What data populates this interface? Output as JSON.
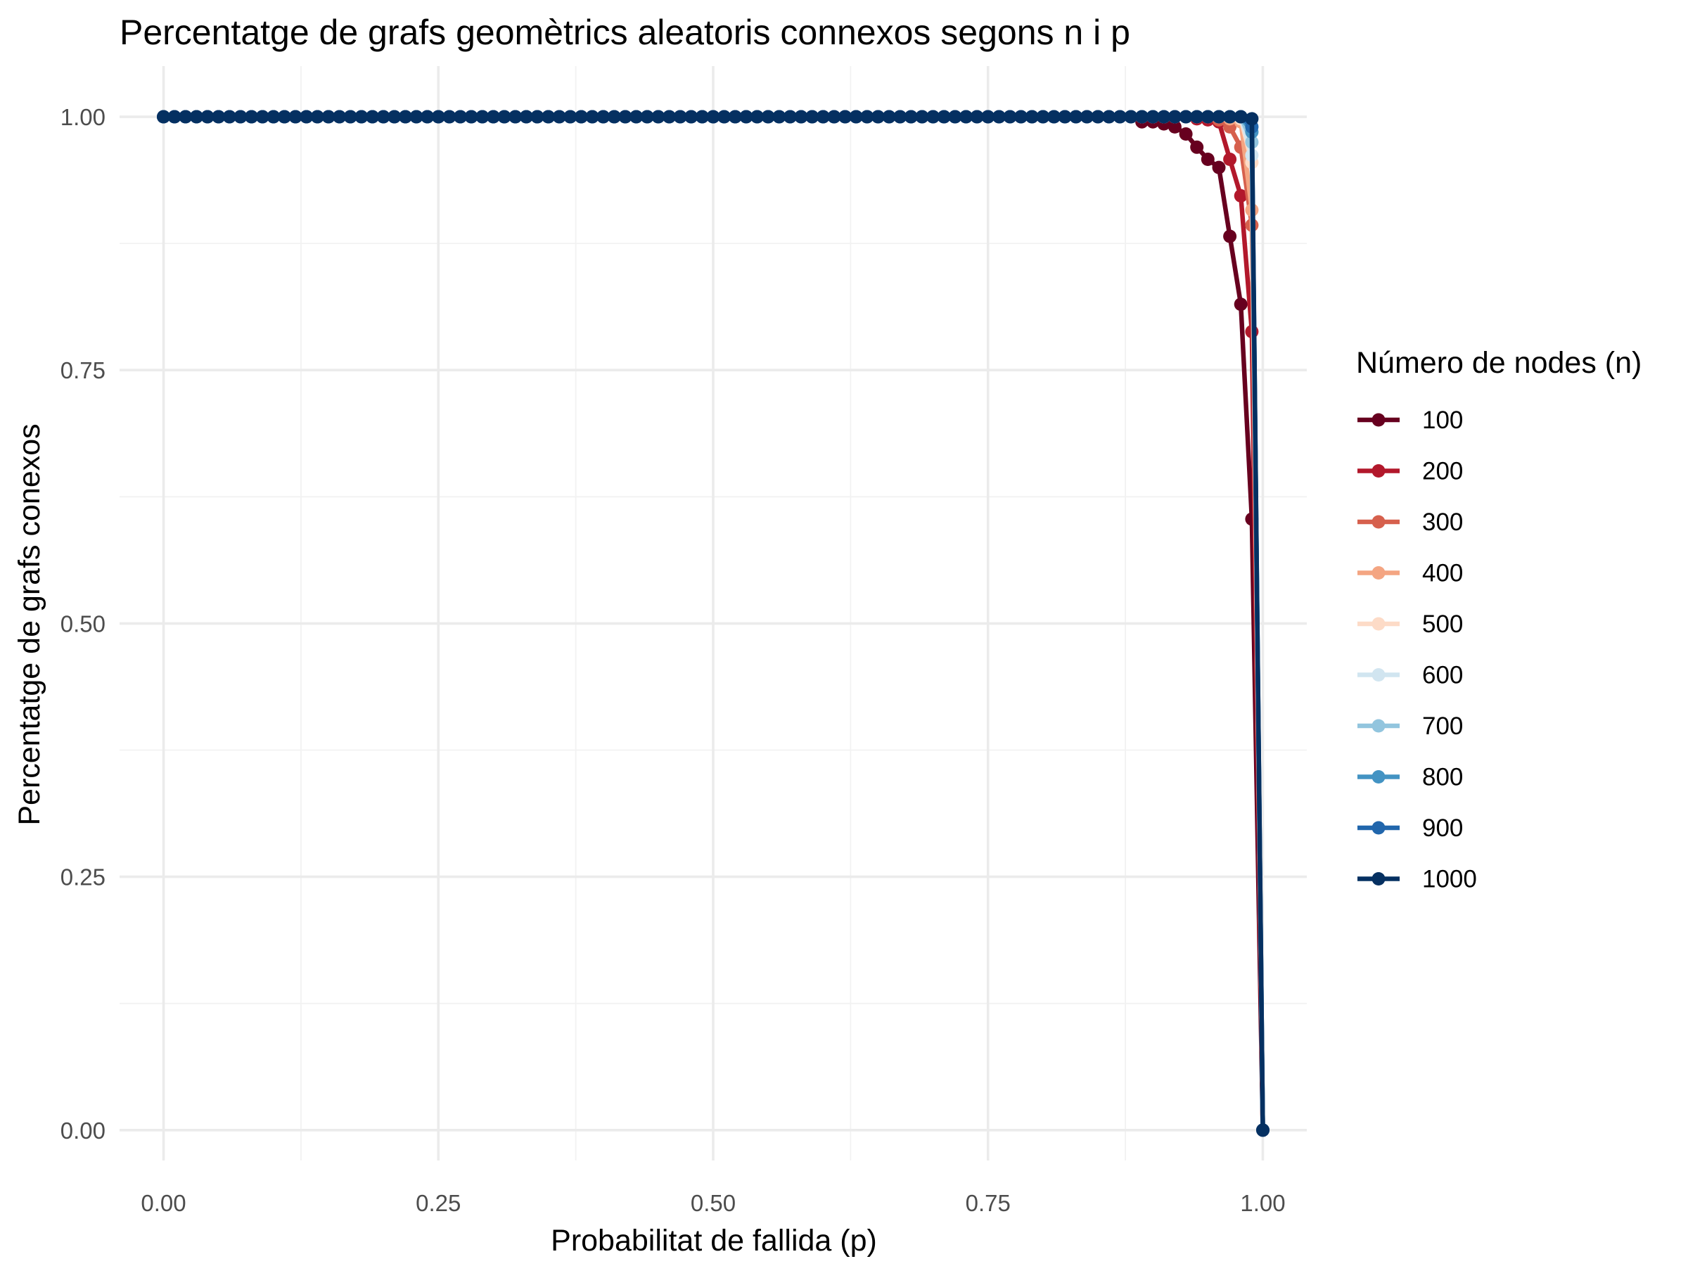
{
  "chart_data": {
    "type": "line",
    "title": "Percentatge de grafs geomètrics aleatoris connexos segons n i p",
    "xlabel": "Probabilitat de fallida (p)",
    "ylabel": "Percentatge de grafs conexos",
    "xlim": [
      -0.04,
      1.04
    ],
    "ylim": [
      -0.03,
      1.05
    ],
    "x_ticks": [
      0,
      0.25,
      0.5,
      0.75,
      1
    ],
    "x_tick_labels": [
      "0.00",
      "0.25",
      "0.50",
      "0.75",
      "1.00"
    ],
    "y_ticks": [
      0,
      0.25,
      0.5,
      0.75,
      1
    ],
    "y_tick_labels": [
      "0.00",
      "0.25",
      "0.50",
      "0.75",
      "1.00"
    ],
    "grid": true,
    "x": {
      "start": 0,
      "end": 1,
      "step": 0.01
    },
    "legend": {
      "title": "Número de nodes (n)",
      "placement": "right"
    },
    "series": [
      {
        "name": "100",
        "color": "#67001f",
        "tail": [
          [
            0.88,
            1.0
          ],
          [
            0.89,
            0.995
          ],
          [
            0.9,
            0.995
          ],
          [
            0.91,
            0.993
          ],
          [
            0.92,
            0.99
          ],
          [
            0.93,
            0.983
          ],
          [
            0.94,
            0.97
          ],
          [
            0.95,
            0.958
          ],
          [
            0.96,
            0.95
          ],
          [
            0.97,
            0.882
          ],
          [
            0.98,
            0.815
          ],
          [
            0.99,
            0.603
          ],
          [
            1.0,
            0.0
          ]
        ]
      },
      {
        "name": "200",
        "color": "#b2182b",
        "tail": [
          [
            0.93,
            1.0
          ],
          [
            0.94,
            0.998
          ],
          [
            0.95,
            0.997
          ],
          [
            0.96,
            0.995
          ],
          [
            0.97,
            0.958
          ],
          [
            0.98,
            0.922
          ],
          [
            0.99,
            0.788
          ],
          [
            1.0,
            0.0
          ]
        ]
      },
      {
        "name": "300",
        "color": "#d6604d",
        "tail": [
          [
            0.95,
            1.0
          ],
          [
            0.96,
            0.997
          ],
          [
            0.97,
            0.99
          ],
          [
            0.98,
            0.97
          ],
          [
            0.99,
            0.893
          ],
          [
            1.0,
            0.0
          ]
        ]
      },
      {
        "name": "400",
        "color": "#f4a582",
        "tail": [
          [
            0.96,
            1.0
          ],
          [
            0.97,
            0.998
          ],
          [
            0.98,
            0.995
          ],
          [
            0.99,
            0.908
          ],
          [
            1.0,
            0.0
          ]
        ]
      },
      {
        "name": "500",
        "color": "#fddbc7",
        "tail": [
          [
            0.97,
            1.0
          ],
          [
            0.98,
            0.998
          ],
          [
            0.99,
            0.955
          ],
          [
            1.0,
            0.0
          ]
        ]
      },
      {
        "name": "600",
        "color": "#d1e5f0",
        "tail": [
          [
            0.98,
            1.0
          ],
          [
            0.99,
            0.962
          ],
          [
            1.0,
            0.0
          ]
        ]
      },
      {
        "name": "700",
        "color": "#92c5de",
        "tail": [
          [
            0.98,
            1.0
          ],
          [
            0.99,
            0.975
          ],
          [
            1.0,
            0.0
          ]
        ]
      },
      {
        "name": "800",
        "color": "#4393c3",
        "tail": [
          [
            0.98,
            1.0
          ],
          [
            0.99,
            0.985
          ],
          [
            1.0,
            0.0
          ]
        ]
      },
      {
        "name": "900",
        "color": "#2166ac",
        "tail": [
          [
            0.98,
            1.0
          ],
          [
            0.99,
            0.99
          ],
          [
            1.0,
            0.0
          ]
        ]
      },
      {
        "name": "1000",
        "color": "#053061",
        "tail": [
          [
            0.98,
            1.0
          ],
          [
            0.99,
            0.998
          ],
          [
            1.0,
            0.0
          ]
        ]
      }
    ]
  }
}
